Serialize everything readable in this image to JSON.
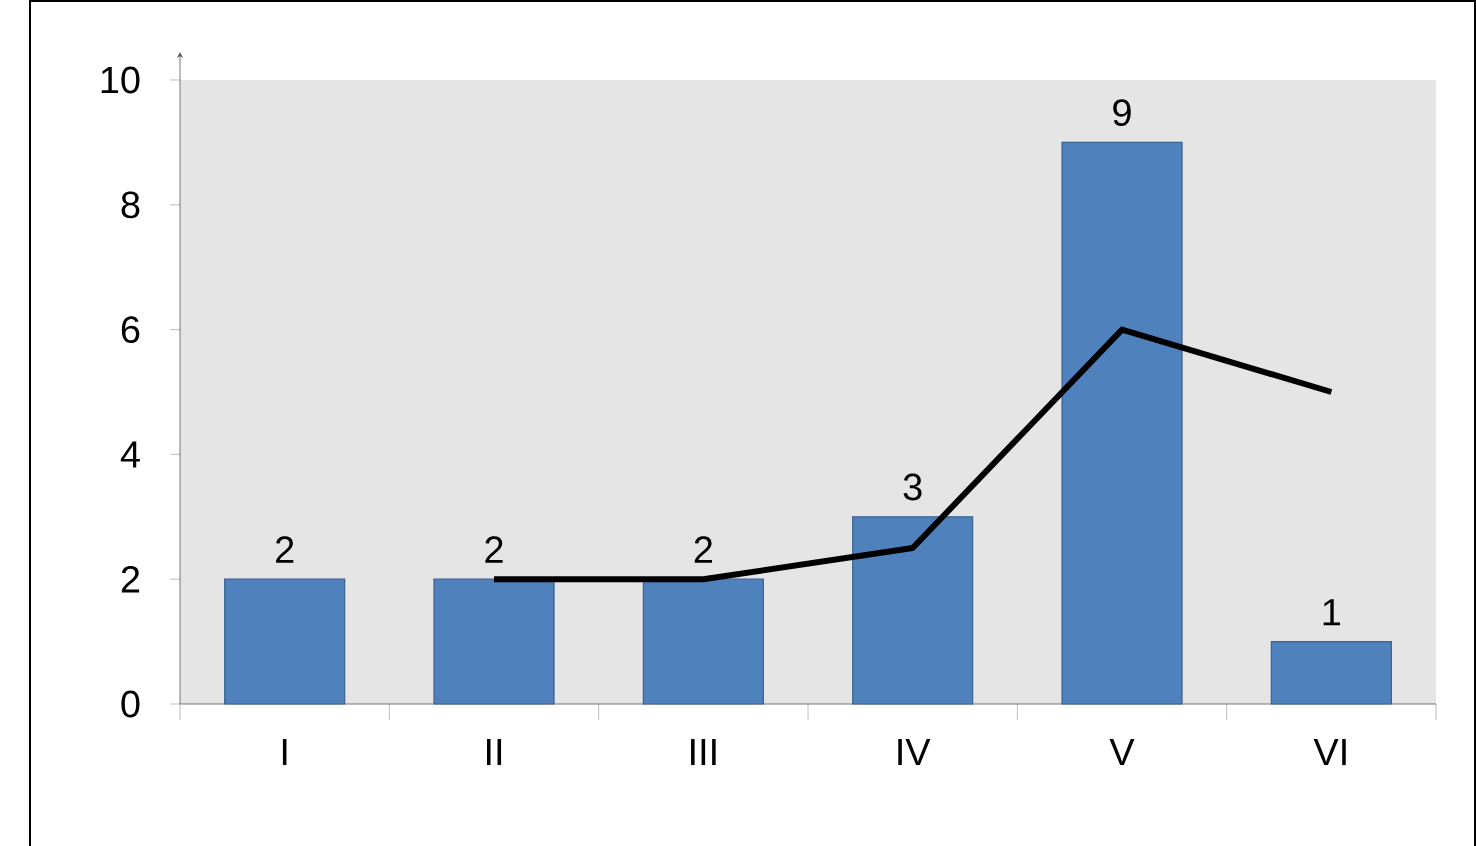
{
  "chart_data": {
    "type": "bar",
    "categories": [
      "I",
      "II",
      "III",
      "IV",
      "V",
      "VI"
    ],
    "series": [
      {
        "color": "#4f81bd",
        "values": [
          2,
          2,
          2,
          3,
          9,
          1
        ],
        "value_labels": [
          "2",
          "2",
          "2",
          "3",
          "9",
          "1"
        ]
      },
      {
        "type": "line",
        "color": "#000000",
        "values": [
          null,
          2,
          2,
          2.5,
          6,
          5
        ]
      }
    ],
    "ylim": [
      0,
      10
    ],
    "yticks": [
      0,
      2,
      4,
      6,
      8,
      10
    ],
    "grid": false
  }
}
